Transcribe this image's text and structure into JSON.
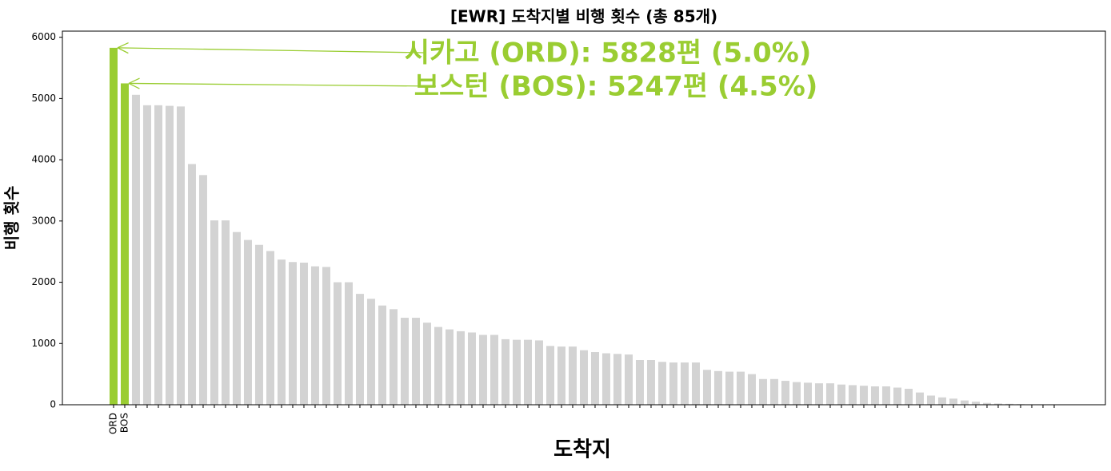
{
  "chart_data": {
    "type": "bar",
    "title": "[EWR] 도착지별 비행 횟수 (총 85개)",
    "xlabel": "도착지",
    "ylabel": "비행 횟수",
    "categories": [
      "ORD",
      "BOS",
      null,
      null,
      null,
      null,
      null,
      null,
      null,
      null,
      null,
      null,
      null,
      null,
      null,
      null,
      null,
      null,
      null,
      null,
      null,
      null,
      null,
      null,
      null,
      null,
      null,
      null,
      null,
      null,
      null,
      null,
      null,
      null,
      null,
      null,
      null,
      null,
      null,
      null,
      null,
      null,
      null,
      null,
      null,
      null,
      null,
      null,
      null,
      null,
      null,
      null,
      null,
      null,
      null,
      null,
      null,
      null,
      null,
      null,
      null,
      null,
      null,
      null,
      null,
      null,
      null,
      null,
      null,
      null,
      null,
      null,
      null,
      null,
      null,
      null,
      null,
      null,
      null,
      null,
      null,
      null,
      null,
      null,
      null
    ],
    "values": [
      5828,
      5247,
      5060,
      4890,
      4890,
      4880,
      4870,
      3930,
      3750,
      3010,
      3010,
      2820,
      2690,
      2610,
      2510,
      2370,
      2330,
      2320,
      2260,
      2250,
      2000,
      2000,
      1810,
      1730,
      1620,
      1560,
      1420,
      1420,
      1340,
      1270,
      1230,
      1200,
      1180,
      1140,
      1140,
      1070,
      1060,
      1060,
      1050,
      960,
      950,
      950,
      890,
      860,
      840,
      830,
      820,
      730,
      730,
      700,
      690,
      690,
      690,
      570,
      550,
      540,
      540,
      500,
      420,
      420,
      390,
      370,
      360,
      350,
      350,
      330,
      320,
      310,
      300,
      300,
      280,
      260,
      200,
      150,
      120,
      100,
      70,
      50,
      30,
      20,
      15,
      10,
      5,
      3,
      1
    ],
    "colors": [
      "#9acd32",
      "#9acd32",
      "#d3d3d3",
      "#d3d3d3",
      "#d3d3d3",
      "#d3d3d3",
      "#d3d3d3",
      "#d3d3d3",
      "#d3d3d3",
      "#d3d3d3",
      "#d3d3d3",
      "#d3d3d3",
      "#d3d3d3",
      "#d3d3d3",
      "#d3d3d3",
      "#d3d3d3",
      "#d3d3d3",
      "#d3d3d3",
      "#d3d3d3",
      "#d3d3d3",
      "#d3d3d3",
      "#d3d3d3",
      "#d3d3d3",
      "#d3d3d3",
      "#d3d3d3",
      "#d3d3d3",
      "#d3d3d3",
      "#d3d3d3",
      "#d3d3d3",
      "#d3d3d3",
      "#d3d3d3",
      "#d3d3d3",
      "#d3d3d3",
      "#d3d3d3",
      "#d3d3d3",
      "#d3d3d3",
      "#d3d3d3",
      "#d3d3d3",
      "#d3d3d3",
      "#d3d3d3",
      "#d3d3d3",
      "#d3d3d3",
      "#d3d3d3",
      "#d3d3d3",
      "#d3d3d3",
      "#d3d3d3",
      "#d3d3d3",
      "#d3d3d3",
      "#d3d3d3",
      "#d3d3d3",
      "#d3d3d3",
      "#d3d3d3",
      "#d3d3d3",
      "#d3d3d3",
      "#d3d3d3",
      "#d3d3d3",
      "#d3d3d3",
      "#d3d3d3",
      "#d3d3d3",
      "#d3d3d3",
      "#d3d3d3",
      "#d3d3d3",
      "#d3d3d3",
      "#d3d3d3",
      "#d3d3d3",
      "#d3d3d3",
      "#d3d3d3",
      "#d3d3d3",
      "#d3d3d3",
      "#d3d3d3",
      "#d3d3d3",
      "#d3d3d3",
      "#d3d3d3",
      "#d3d3d3",
      "#d3d3d3",
      "#d3d3d3",
      "#d3d3d3",
      "#d3d3d3",
      "#d3d3d3",
      "#d3d3d3",
      "#d3d3d3",
      "#d3d3d3",
      "#d3d3d3",
      "#d3d3d3",
      "#d3d3d3"
    ],
    "annotations": [
      {
        "text": "시카고 (ORD): 5828편 (5.0%)",
        "color": "#9acd32"
      },
      {
        "text": "보스턴 (BOS): 5247편 (4.5%)",
        "color": "#9acd32"
      }
    ],
    "ylim": [
      0,
      6100
    ],
    "yticks": [
      0,
      1000,
      2000,
      3000,
      4000,
      5000,
      6000
    ],
    "grid": false
  }
}
